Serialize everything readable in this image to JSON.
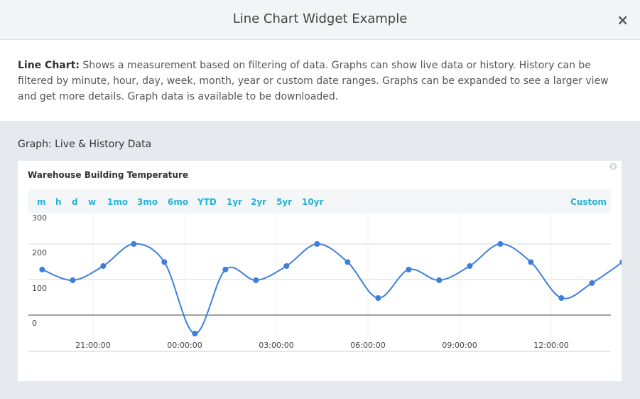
{
  "dialog": {
    "title": "Line Chart Widget Example",
    "close_icon": "close-icon",
    "close_glyph": "×"
  },
  "description": {
    "label": "Line Chart:",
    "text": " Shows a measurement based on filtering of data. Graphs can show live data or history. History can be filtered by minute, hour, day, week, month, year or custom date ranges. Graphs can be expanded to see a larger view and get more details. Graph data is available to be downloaded."
  },
  "section": {
    "title": "Graph: Live & History Data"
  },
  "widget": {
    "title": "Warehouse Building Temperature",
    "settings_icon": "gear-icon",
    "ranges": [
      "m",
      "h",
      "d",
      "w",
      "1mo",
      "3mo",
      "6mo",
      "YTD",
      "1yr",
      "2yr",
      "5yr",
      "10yr"
    ],
    "custom_label": "Custom",
    "accent_color": "#20b4d8",
    "line_color": "#3f7fdc"
  },
  "chart_data": {
    "type": "line",
    "title": "Warehouse Building Temperature",
    "xlabel": "",
    "ylabel": "",
    "ylim": [
      0,
      300
    ],
    "yticks": [
      "0",
      "100",
      "200",
      "300"
    ],
    "xticks": [
      "21:00:00",
      "00:00:00",
      "03:00:00",
      "06:00:00",
      "09:00:00",
      "12:00:00"
    ],
    "grid": true,
    "series": [
      {
        "x": [
          "19:20",
          "20:20",
          "21:20",
          "22:20",
          "23:20",
          "00:20",
          "01:20",
          "02:20",
          "03:20",
          "04:20",
          "05:20",
          "06:20",
          "07:20",
          "08:20",
          "09:20",
          "10:20",
          "11:20",
          "12:20",
          "13:20",
          "14:20"
        ],
        "values": [
          128,
          98,
          138,
          200,
          149,
          -52,
          128,
          98,
          138,
          200,
          149,
          48,
          128,
          98,
          138,
          200,
          149,
          48,
          90,
          149
        ]
      }
    ]
  }
}
